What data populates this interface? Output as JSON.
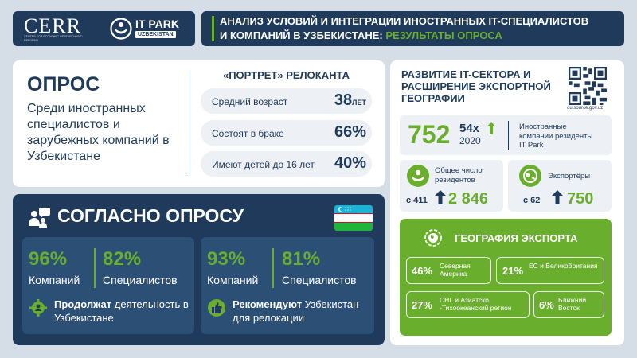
{
  "header": {
    "logo_cerr": "CERR",
    "logo_cerr_sub": "CENTER FOR ECONOMIC RESEARCH AND REFORMS",
    "logo_itpark": "IT PARK",
    "logo_itpark_sub": "UZBEKISTAN",
    "title_line1": "АНАЛИЗ УСЛОВИЙ И ИНТЕГРАЦИИ ИНОСТРАННЫХ IT-СПЕЦИАЛИСТОВ",
    "title_line2_a": "И КОМПАНИЙ В УЗБЕКИСТАНЕ: ",
    "title_line2_b": "РЕЗУЛЬТАТЫ ОПРОСА",
    "accent_color": "#6aae2d",
    "primary_color": "#1f3a5a"
  },
  "survey": {
    "title": "ОПРОС",
    "description": "Среди иностранных специалистов и зарубежных компаний в Узбекистане"
  },
  "portrait": {
    "title": "«ПОРТРЕТ» РЕЛОКАНТА",
    "rows": [
      {
        "label": "Средний возраст",
        "value": "38",
        "unit": "ЛЕТ"
      },
      {
        "label": "Состоят в браке",
        "value": "66%",
        "unit": ""
      },
      {
        "label": "Имеют детей до 16 лет",
        "value": "40%",
        "unit": ""
      }
    ]
  },
  "opinion": {
    "title": "СОГЛАСНО ОПРОСУ",
    "left": {
      "pct1": "96%",
      "label1": "Компаний",
      "pct2": "82%",
      "label2": "Специалистов",
      "bold": "Продолжат",
      "rest": " деятельность в Узбекистане"
    },
    "right": {
      "pct1": "93%",
      "label1": "Компаний",
      "pct2": "81%",
      "label2": "Специалистов",
      "bold": "Рекомендуют",
      "rest": " Узбекистан для релокации"
    }
  },
  "it_sector": {
    "title": "РАЗВИТИЕ IT-СЕКТОРА И РАСШИРЕНИЕ ЭКСПОРТНОЙ ГЕОГРАФИИ",
    "qr_caption": "outsource.gov.uz",
    "big_number": "752",
    "multiplier": "54x",
    "since_year": "2020",
    "foreign_text": "Иностранные компании резиденты IT Park",
    "residents": {
      "label": "Общее число резидентов",
      "from": "с 411",
      "to": "2 846"
    },
    "exporters": {
      "label": "Экспортёры",
      "from": "с 62",
      "to": "750"
    }
  },
  "geography": {
    "title": "ГЕОГРАФИЯ ЭКСПОРТА",
    "items": [
      {
        "pct": "46%",
        "name": "Северная Америка"
      },
      {
        "pct": "21%",
        "name": "ЕС и Великобритания"
      },
      {
        "pct": "27%",
        "name": "СНГ и Азиатско -Тихоокеанский регион"
      },
      {
        "pct": "6%",
        "name": "Ближний Восток"
      }
    ]
  }
}
